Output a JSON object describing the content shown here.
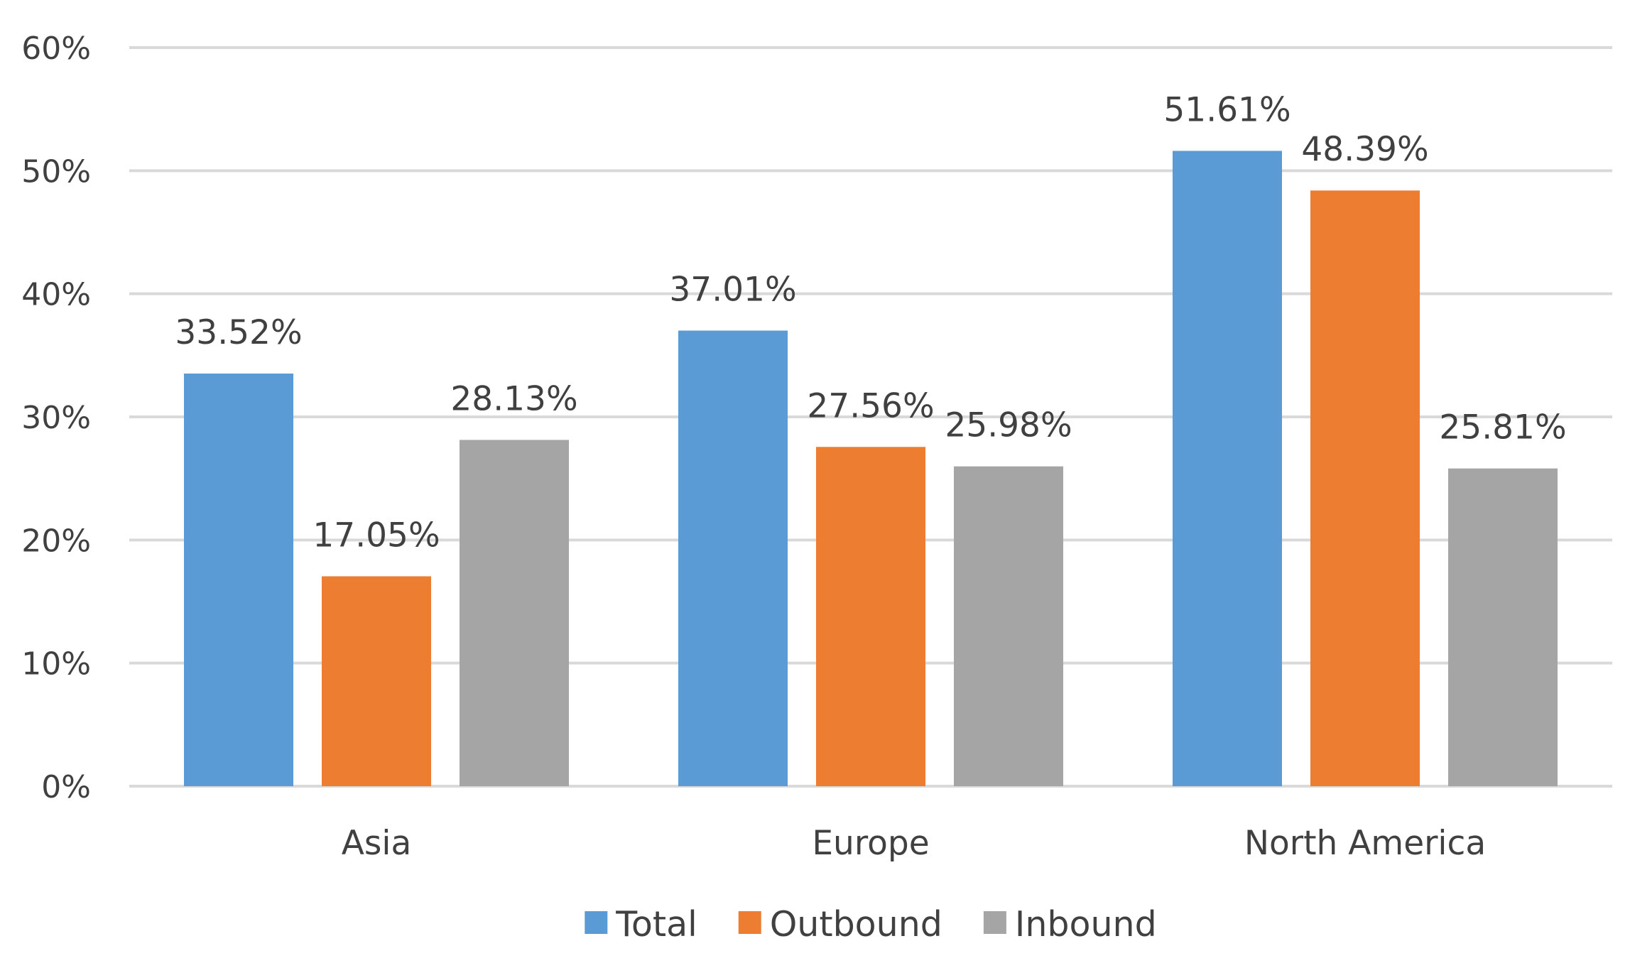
{
  "chart_data": {
    "type": "bar",
    "title": "",
    "xlabel": "",
    "ylabel": "",
    "categories": [
      "Asia",
      "Europe",
      "North America"
    ],
    "series": [
      {
        "name": "Total",
        "color": "#5B9BD5",
        "values": [
          33.52,
          37.01,
          51.61
        ],
        "labels": [
          "33.52%",
          "37.01%",
          "51.61%"
        ]
      },
      {
        "name": "Outbound",
        "color": "#ED7D31",
        "values": [
          17.05,
          27.56,
          48.39
        ],
        "labels": [
          "17.05%",
          "27.56%",
          "48.39%"
        ]
      },
      {
        "name": "Inbound",
        "color": "#A5A5A5",
        "values": [
          28.13,
          25.98,
          25.81
        ],
        "labels": [
          "28.13%",
          "25.98%",
          "25.81%"
        ]
      }
    ],
    "ylim": [
      0,
      60
    ],
    "yticks": [
      0,
      10,
      20,
      30,
      40,
      50,
      60
    ],
    "ytick_labels": [
      "0%",
      "10%",
      "20%",
      "30%",
      "40%",
      "50%",
      "60%"
    ],
    "grid": true,
    "legend_position": "bottom",
    "grid_color": "#D9D9D9",
    "text_color": "#404040"
  }
}
